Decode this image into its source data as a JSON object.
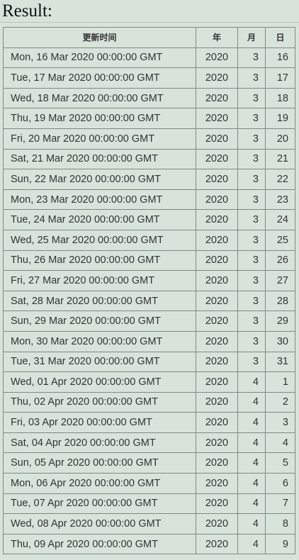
{
  "heading": "Result:",
  "table": {
    "headers": [
      "更新时间",
      "年",
      "月",
      "日"
    ],
    "rows": [
      [
        "Mon, 16 Mar 2020 00:00:00 GMT",
        "2020",
        "3",
        "16"
      ],
      [
        "Tue, 17 Mar 2020 00:00:00 GMT",
        "2020",
        "3",
        "17"
      ],
      [
        "Wed, 18 Mar 2020 00:00:00 GMT",
        "2020",
        "3",
        "18"
      ],
      [
        "Thu, 19 Mar 2020 00:00:00 GMT",
        "2020",
        "3",
        "19"
      ],
      [
        "Fri, 20 Mar 2020 00:00:00 GMT",
        "2020",
        "3",
        "20"
      ],
      [
        "Sat, 21 Mar 2020 00:00:00 GMT",
        "2020",
        "3",
        "21"
      ],
      [
        "Sun, 22 Mar 2020 00:00:00 GMT",
        "2020",
        "3",
        "22"
      ],
      [
        "Mon, 23 Mar 2020 00:00:00 GMT",
        "2020",
        "3",
        "23"
      ],
      [
        "Tue, 24 Mar 2020 00:00:00 GMT",
        "2020",
        "3",
        "24"
      ],
      [
        "Wed, 25 Mar 2020 00:00:00 GMT",
        "2020",
        "3",
        "25"
      ],
      [
        "Thu, 26 Mar 2020 00:00:00 GMT",
        "2020",
        "3",
        "26"
      ],
      [
        "Fri, 27 Mar 2020 00:00:00 GMT",
        "2020",
        "3",
        "27"
      ],
      [
        "Sat, 28 Mar 2020 00:00:00 GMT",
        "2020",
        "3",
        "28"
      ],
      [
        "Sun, 29 Mar 2020 00:00:00 GMT",
        "2020",
        "3",
        "29"
      ],
      [
        "Mon, 30 Mar 2020 00:00:00 GMT",
        "2020",
        "3",
        "30"
      ],
      [
        "Tue, 31 Mar 2020 00:00:00 GMT",
        "2020",
        "3",
        "31"
      ],
      [
        "Wed, 01 Apr 2020 00:00:00 GMT",
        "2020",
        "4",
        "1"
      ],
      [
        "Thu, 02 Apr 2020 00:00:00 GMT",
        "2020",
        "4",
        "2"
      ],
      [
        "Fri, 03 Apr 2020 00:00:00 GMT",
        "2020",
        "4",
        "3"
      ],
      [
        "Sat, 04 Apr 2020 00:00:00 GMT",
        "2020",
        "4",
        "4"
      ],
      [
        "Sun, 05 Apr 2020 00:00:00 GMT",
        "2020",
        "4",
        "5"
      ],
      [
        "Mon, 06 Apr 2020 00:00:00 GMT",
        "2020",
        "4",
        "6"
      ],
      [
        "Tue, 07 Apr 2020 00:00:00 GMT",
        "2020",
        "4",
        "7"
      ],
      [
        "Wed, 08 Apr 2020 00:00:00 GMT",
        "2020",
        "4",
        "8"
      ],
      [
        "Thu, 09 Apr 2020 00:00:00 GMT",
        "2020",
        "4",
        "9"
      ]
    ]
  }
}
